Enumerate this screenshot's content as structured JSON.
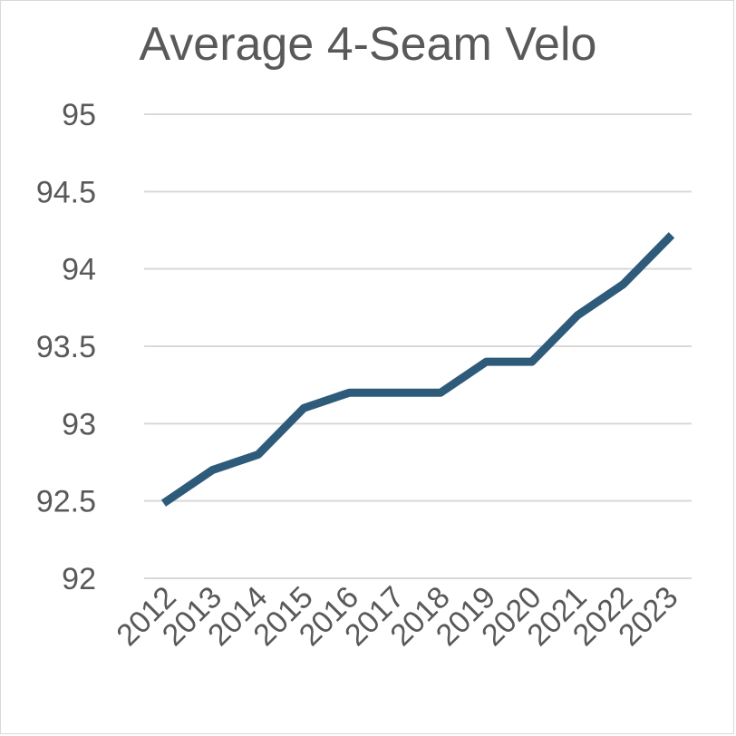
{
  "chart_data": {
    "type": "line",
    "title": "Average 4-Seam Velo",
    "xlabel": "",
    "ylabel": "",
    "categories": [
      "2012",
      "2013",
      "2014",
      "2015",
      "2016",
      "2017",
      "2018",
      "2019",
      "2020",
      "2021",
      "2022",
      "2023"
    ],
    "series": [
      {
        "values": [
          92.5,
          92.7,
          92.8,
          93.1,
          93.2,
          93.2,
          93.2,
          93.4,
          93.4,
          93.7,
          93.9,
          94.2
        ],
        "color": "#2e5b7a"
      }
    ],
    "ylim": [
      92,
      95
    ],
    "yticks": [
      "92",
      "92.5",
      "93",
      "93.5",
      "94",
      "94.5",
      "95"
    ],
    "grid": true,
    "legend": "none"
  }
}
